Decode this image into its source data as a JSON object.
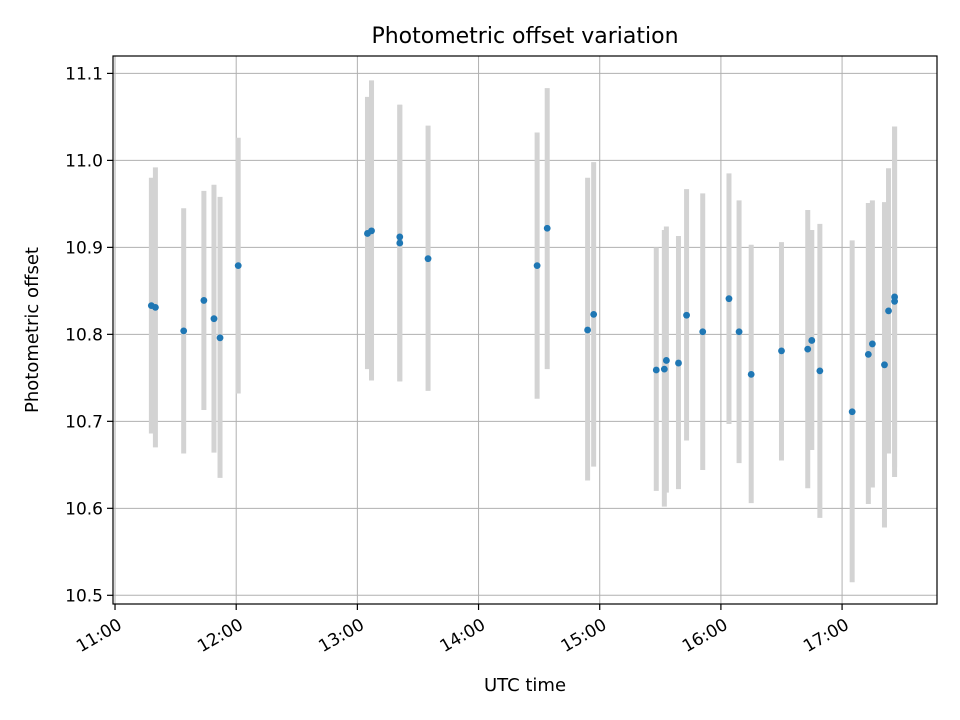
{
  "chart_data": {
    "type": "scatter",
    "title": "Photometric offset variation",
    "xlabel": "UTC time",
    "ylabel": "Photometric offset",
    "x_axis_kind": "time",
    "xlim": [
      "10:59",
      "17:47"
    ],
    "ylim": [
      10.49,
      11.12
    ],
    "x_ticks": [
      "11:00",
      "12:00",
      "13:00",
      "14:00",
      "15:00",
      "16:00",
      "17:00"
    ],
    "y_ticks": [
      10.5,
      10.6,
      10.7,
      10.8,
      10.9,
      11.0,
      11.1
    ],
    "grid": true,
    "colors": {
      "point": "#1f77b4",
      "errorbar": "#d3d3d3"
    },
    "points": [
      {
        "x": "11:18",
        "y": 10.833,
        "ylow": 10.686,
        "yhigh": 10.98
      },
      {
        "x": "11:20",
        "y": 10.831,
        "ylow": 10.67,
        "yhigh": 10.992
      },
      {
        "x": "11:34",
        "y": 10.804,
        "ylow": 10.663,
        "yhigh": 10.945
      },
      {
        "x": "11:44",
        "y": 10.839,
        "ylow": 10.713,
        "yhigh": 10.965
      },
      {
        "x": "11:49",
        "y": 10.818,
        "ylow": 10.664,
        "yhigh": 10.972
      },
      {
        "x": "11:52",
        "y": 10.796,
        "ylow": 10.635,
        "yhigh": 10.958
      },
      {
        "x": "12:01",
        "y": 10.879,
        "ylow": 10.732,
        "yhigh": 11.026
      },
      {
        "x": "13:05",
        "y": 10.916,
        "ylow": 10.76,
        "yhigh": 11.073
      },
      {
        "x": "13:07",
        "y": 10.919,
        "ylow": 10.747,
        "yhigh": 11.092
      },
      {
        "x": "13:21",
        "y": 10.912,
        "ylow": 10.746,
        "yhigh": 11.064
      },
      {
        "x": "13:21",
        "y": 10.905,
        "ylow": 10.746,
        "yhigh": 11.064
      },
      {
        "x": "13:35",
        "y": 10.887,
        "ylow": 10.735,
        "yhigh": 11.04
      },
      {
        "x": "14:29",
        "y": 10.879,
        "ylow": 10.726,
        "yhigh": 11.032
      },
      {
        "x": "14:34",
        "y": 10.922,
        "ylow": 10.76,
        "yhigh": 11.083
      },
      {
        "x": "14:54",
        "y": 10.805,
        "ylow": 10.632,
        "yhigh": 10.98
      },
      {
        "x": "14:57",
        "y": 10.823,
        "ylow": 10.648,
        "yhigh": 10.998
      },
      {
        "x": "15:28",
        "y": 10.759,
        "ylow": 10.62,
        "yhigh": 10.9
      },
      {
        "x": "15:32",
        "y": 10.76,
        "ylow": 10.602,
        "yhigh": 10.92
      },
      {
        "x": "15:33",
        "y": 10.77,
        "ylow": 10.618,
        "yhigh": 10.924
      },
      {
        "x": "15:39",
        "y": 10.767,
        "ylow": 10.622,
        "yhigh": 10.913
      },
      {
        "x": "15:43",
        "y": 10.822,
        "ylow": 10.678,
        "yhigh": 10.967
      },
      {
        "x": "15:51",
        "y": 10.803,
        "ylow": 10.644,
        "yhigh": 10.962
      },
      {
        "x": "16:04",
        "y": 10.841,
        "ylow": 10.697,
        "yhigh": 10.985
      },
      {
        "x": "16:09",
        "y": 10.803,
        "ylow": 10.652,
        "yhigh": 10.954
      },
      {
        "x": "16:15",
        "y": 10.754,
        "ylow": 10.606,
        "yhigh": 10.903
      },
      {
        "x": "16:30",
        "y": 10.781,
        "ylow": 10.655,
        "yhigh": 10.906
      },
      {
        "x": "16:43",
        "y": 10.783,
        "ylow": 10.623,
        "yhigh": 10.943
      },
      {
        "x": "16:45",
        "y": 10.793,
        "ylow": 10.667,
        "yhigh": 10.92
      },
      {
        "x": "16:49",
        "y": 10.758,
        "ylow": 10.589,
        "yhigh": 10.927
      },
      {
        "x": "17:05",
        "y": 10.711,
        "ylow": 10.515,
        "yhigh": 10.908
      },
      {
        "x": "17:13",
        "y": 10.777,
        "ylow": 10.605,
        "yhigh": 10.951
      },
      {
        "x": "17:15",
        "y": 10.789,
        "ylow": 10.624,
        "yhigh": 10.954
      },
      {
        "x": "17:21",
        "y": 10.765,
        "ylow": 10.578,
        "yhigh": 10.952
      },
      {
        "x": "17:23",
        "y": 10.827,
        "ylow": 10.663,
        "yhigh": 10.991
      },
      {
        "x": "17:26",
        "y": 10.838,
        "ylow": 10.636,
        "yhigh": 11.039
      },
      {
        "x": "17:26",
        "y": 10.843,
        "ylow": 10.647,
        "yhigh": 11.039
      }
    ]
  }
}
